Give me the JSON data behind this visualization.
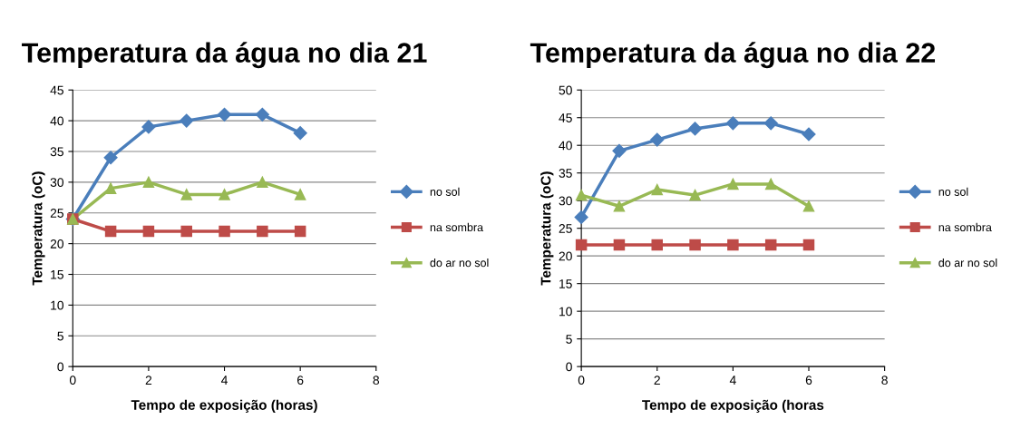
{
  "chart_data": [
    {
      "type": "line",
      "title": "Temperatura da água no dia 21",
      "xlabel": "Tempo de exposição (horas)",
      "ylabel": "Temperatura (oC)",
      "x": [
        0,
        1,
        2,
        3,
        4,
        5,
        6
      ],
      "xlim": [
        0,
        8
      ],
      "xticks": [
        0,
        2,
        4,
        6,
        8
      ],
      "ylim": [
        0,
        45
      ],
      "yticks": [
        0,
        5,
        10,
        15,
        20,
        25,
        30,
        35,
        40,
        45
      ],
      "grid": "y",
      "legend": "right",
      "series": [
        {
          "name": "no sol",
          "color": "#4a7ebb",
          "marker": "diamond",
          "values": [
            24,
            34,
            39,
            40,
            41,
            41,
            38
          ]
        },
        {
          "name": "na sombra",
          "color": "#be4b48",
          "marker": "square",
          "values": [
            24,
            22,
            22,
            22,
            22,
            22,
            22
          ]
        },
        {
          "name": "do ar no sol",
          "color": "#98b954",
          "marker": "triangle",
          "values": [
            24,
            29,
            30,
            28,
            28,
            30,
            28
          ]
        }
      ]
    },
    {
      "type": "line",
      "title": "Temperatura da água no dia 22",
      "xlabel": "Tempo de exposição (horas",
      "ylabel": "Temperatura (oC)",
      "x": [
        0,
        1,
        2,
        3,
        4,
        5,
        6
      ],
      "xlim": [
        0,
        8
      ],
      "xticks": [
        0,
        2,
        4,
        6,
        8
      ],
      "ylim": [
        0,
        50
      ],
      "yticks": [
        0,
        5,
        10,
        15,
        20,
        25,
        30,
        35,
        40,
        45,
        50
      ],
      "grid": "y",
      "legend": "right",
      "series": [
        {
          "name": "no sol",
          "color": "#4a7ebb",
          "marker": "diamond",
          "values": [
            27,
            39,
            41,
            43,
            44,
            44,
            42
          ]
        },
        {
          "name": "na sombra",
          "color": "#be4b48",
          "marker": "square",
          "values": [
            22,
            22,
            22,
            22,
            22,
            22,
            22
          ]
        },
        {
          "name": "do ar no sol",
          "color": "#98b954",
          "marker": "triangle",
          "values": [
            31,
            29,
            32,
            31,
            33,
            33,
            29
          ]
        }
      ]
    }
  ]
}
